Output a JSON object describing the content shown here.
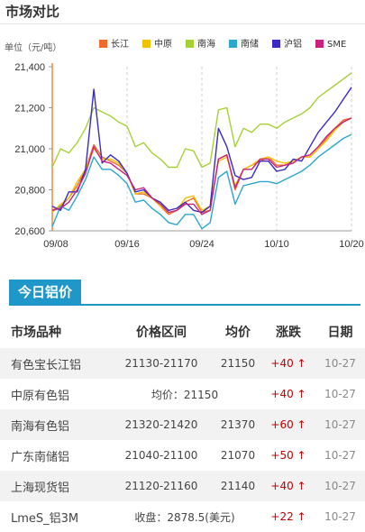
{
  "header": {
    "title": "市场对比"
  },
  "chart": {
    "unit_label": "单位（元/吨）",
    "legend": [
      {
        "name": "长江",
        "color": "#f06a2a"
      },
      {
        "name": "中原",
        "color": "#f2c200"
      },
      {
        "name": "南海",
        "color": "#a6d136"
      },
      {
        "name": "南储",
        "color": "#2aa6cf"
      },
      {
        "name": "沪铝",
        "color": "#3a2bc4"
      },
      {
        "name": "SME",
        "color": "#c9217f"
      }
    ]
  },
  "chart_data": {
    "type": "line",
    "ylim": [
      20600,
      21400
    ],
    "y_ticks": [
      "21,400",
      "21,200",
      "21,000",
      "20,800",
      "20,600"
    ],
    "x_tick_labels": [
      "09/08",
      "09/16",
      "09/24",
      "10/10",
      "10/20"
    ],
    "x_tick_index": [
      0,
      9,
      18,
      27,
      36
    ],
    "grid": "vertical dashed",
    "legend_position": "top",
    "series": [
      {
        "name": "长江",
        "color": "#f06a2a",
        "values": [
          20700,
          20720,
          20760,
          20820,
          20900,
          21020,
          20960,
          20940,
          20920,
          20880,
          20780,
          20780,
          20760,
          20720,
          20680,
          20700,
          20740,
          20760,
          20690,
          20700,
          20950,
          20970,
          20800,
          20900,
          20920,
          20940,
          20960,
          20920,
          20920,
          20940,
          20960,
          20960,
          21000,
          21050,
          21100,
          21140,
          21150
        ]
      },
      {
        "name": "中原",
        "color": "#f2c200",
        "values": [
          20690,
          20730,
          20760,
          20840,
          20900,
          21000,
          20950,
          20950,
          20930,
          20880,
          20780,
          20790,
          20760,
          20720,
          20690,
          20700,
          20760,
          20770,
          20700,
          20720,
          20940,
          20960,
          20820,
          20900,
          20920,
          20950,
          20960,
          20940,
          20930,
          20940,
          20960,
          20960,
          21000,
          21040,
          21090,
          21130,
          21150
        ]
      },
      {
        "name": "南海",
        "color": "#a6d136",
        "values": [
          20910,
          21000,
          20980,
          21030,
          21100,
          21200,
          21180,
          21160,
          21130,
          21110,
          21010,
          21030,
          20980,
          20950,
          20910,
          20910,
          21000,
          20990,
          20910,
          20930,
          21190,
          21200,
          21010,
          21100,
          21080,
          21120,
          21120,
          21100,
          21130,
          21150,
          21170,
          21200,
          21250,
          21280,
          21310,
          21340,
          21370
        ]
      },
      {
        "name": "南储",
        "color": "#2aa6cf",
        "values": [
          20620,
          20720,
          20700,
          20770,
          20850,
          20960,
          20900,
          20900,
          20870,
          20830,
          20740,
          20750,
          20710,
          20680,
          20640,
          20630,
          20680,
          20680,
          20610,
          20640,
          20860,
          20890,
          20730,
          20820,
          20830,
          20840,
          20840,
          20830,
          20850,
          20870,
          20890,
          20920,
          20960,
          20990,
          21020,
          21050,
          21070
        ]
      },
      {
        "name": "沪铝",
        "color": "#3a2bc4",
        "values": [
          20720,
          20700,
          20790,
          20790,
          20900,
          21290,
          20930,
          20970,
          20940,
          20880,
          20790,
          20800,
          20760,
          20740,
          20700,
          20710,
          20740,
          20700,
          20690,
          20720,
          21100,
          21010,
          20870,
          20850,
          20860,
          20940,
          20940,
          20890,
          20900,
          20950,
          20940,
          21010,
          21080,
          21130,
          21180,
          21240,
          21300
        ]
      },
      {
        "name": "SME",
        "color": "#c9217f",
        "values": [
          20700,
          20710,
          20740,
          20800,
          20880,
          21010,
          20940,
          20930,
          20900,
          20870,
          20800,
          20810,
          20760,
          20730,
          20690,
          20700,
          20730,
          20730,
          20680,
          20700,
          20950,
          20970,
          20810,
          20900,
          20900,
          20950,
          20950,
          20910,
          20920,
          20930,
          20960,
          20970,
          21010,
          21060,
          21100,
          21130,
          21150
        ]
      }
    ]
  },
  "section": {
    "title": "今日铝价"
  },
  "table": {
    "headers": [
      "市场品种",
      "价格区间",
      "均价",
      "涨跌",
      "日期"
    ],
    "rows": [
      {
        "name": "有色宝长江铝",
        "range": "21130-21170",
        "avg": "21150",
        "change": "+40",
        "arrow": "↑",
        "date": "10-27"
      },
      {
        "name": "中原有色铝",
        "merged": "均价：21150",
        "change": "+40",
        "arrow": "↑",
        "date": "10-27"
      },
      {
        "name": "南海有色铝",
        "range": "21320-21420",
        "avg": "21370",
        "change": "+60",
        "arrow": "↑",
        "date": "10-27"
      },
      {
        "name": "广东南储铝",
        "range": "21040-21100",
        "avg": "21070",
        "change": "+50",
        "arrow": "↑",
        "date": "10-27"
      },
      {
        "name": "上海现货铝",
        "range": "21120-21160",
        "avg": "21140",
        "change": "+40",
        "arrow": "↑",
        "date": "10-27"
      },
      {
        "name": "LmeS_铝3M",
        "merged": "收盘：2878.5(美元)",
        "change": "+22",
        "arrow": "↑",
        "date": "10-27"
      }
    ]
  }
}
